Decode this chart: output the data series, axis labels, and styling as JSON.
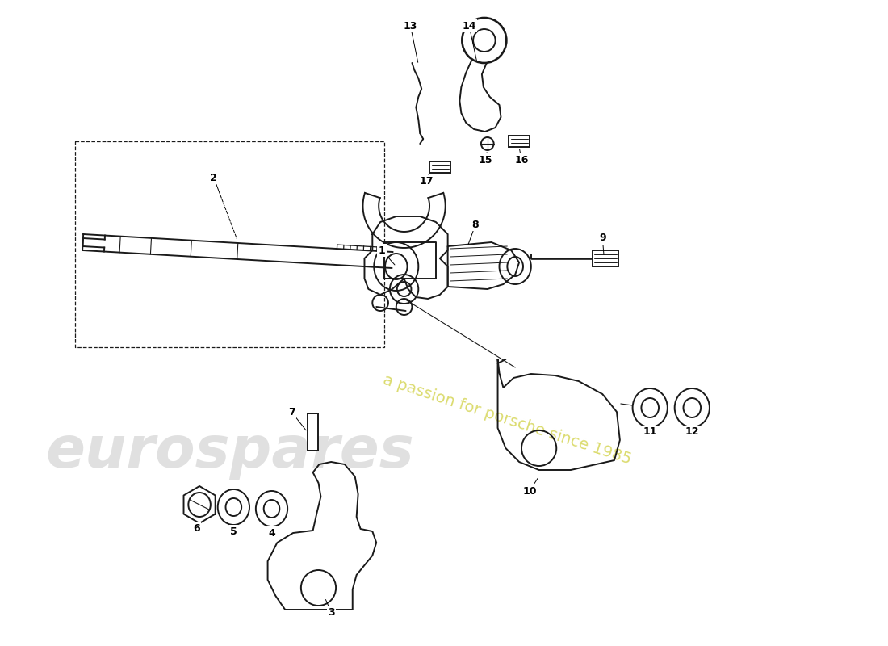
{
  "bg_color": "#ffffff",
  "line_color": "#1a1a1a",
  "lw": 1.4,
  "watermark1_text": "eurospares",
  "watermark1_color": "#c8c8c8",
  "watermark1_alpha": 0.55,
  "watermark1_fontsize": 52,
  "watermark2_text": "a passion for porsche since 1985",
  "watermark2_color": "#c8c820",
  "watermark2_alpha": 0.65,
  "watermark2_fontsize": 14,
  "watermark2_rotation": -18
}
